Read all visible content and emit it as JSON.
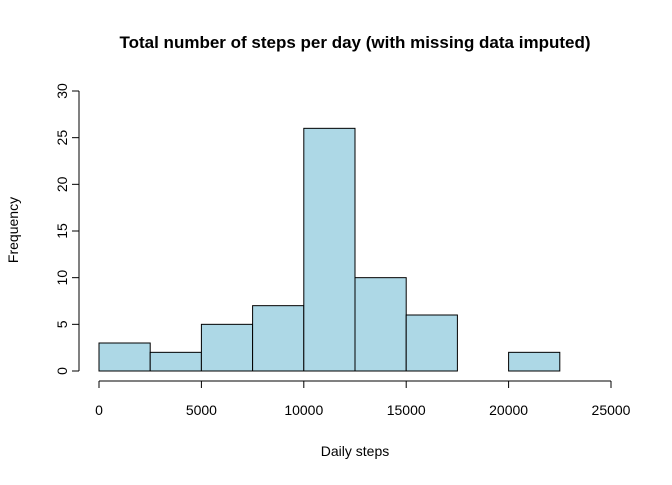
{
  "chart_data": {
    "type": "bar",
    "subtype": "histogram",
    "title": "Total number of steps per day (with missing data imputed)",
    "xlabel": "Daily steps",
    "ylabel": "Frequency",
    "bins": [
      {
        "start": 0,
        "end": 2500,
        "count": 3
      },
      {
        "start": 2500,
        "end": 5000,
        "count": 2
      },
      {
        "start": 5000,
        "end": 7500,
        "count": 5
      },
      {
        "start": 7500,
        "end": 10000,
        "count": 7
      },
      {
        "start": 10000,
        "end": 12500,
        "count": 26
      },
      {
        "start": 12500,
        "end": 15000,
        "count": 10
      },
      {
        "start": 15000,
        "end": 17500,
        "count": 6
      },
      {
        "start": 17500,
        "end": 20000,
        "count": 0
      },
      {
        "start": 20000,
        "end": 22500,
        "count": 2
      }
    ],
    "xlim": [
      0,
      25000
    ],
    "ylim": [
      0,
      30
    ],
    "x_ticks": [
      0,
      5000,
      10000,
      15000,
      20000,
      25000
    ],
    "x_tick_labels": [
      "0",
      "5000",
      "10000",
      "15000",
      "20000",
      "25000"
    ],
    "y_ticks": [
      0,
      5,
      10,
      15,
      20,
      25,
      30
    ],
    "y_tick_labels": [
      "0",
      "5",
      "10",
      "15",
      "20",
      "25",
      "30"
    ],
    "bar_color": "#add8e6",
    "border_color": "#000000",
    "grid": false,
    "legend": "none"
  }
}
